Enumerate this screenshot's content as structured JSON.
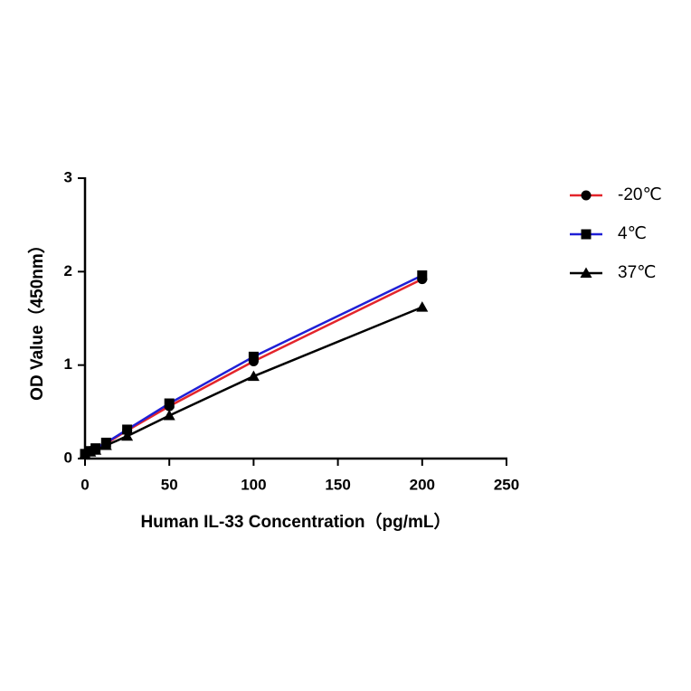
{
  "chart_data": {
    "type": "line",
    "x_label": "Human IL-33 Concentration（pg/mL）",
    "y_label": "OD Value（450nm）",
    "x": [
      0,
      3.125,
      6.25,
      12.5,
      25,
      50,
      100,
      200
    ],
    "series": [
      {
        "name": "-20℃",
        "color": "#e3242b",
        "marker": "circle",
        "values": [
          0.05,
          0.08,
          0.1,
          0.16,
          0.3,
          0.56,
          1.04,
          1.92
        ]
      },
      {
        "name": "4℃",
        "color": "#1f1fd6",
        "marker": "square",
        "values": [
          0.05,
          0.08,
          0.11,
          0.17,
          0.31,
          0.59,
          1.09,
          1.96
        ]
      },
      {
        "name": "37℃",
        "color": "#000000",
        "marker": "triangle",
        "values": [
          0.05,
          0.07,
          0.09,
          0.14,
          0.24,
          0.46,
          0.88,
          1.62
        ]
      }
    ],
    "marker_color": "#000000",
    "xlim": [
      0,
      250
    ],
    "xticks": [
      0,
      50,
      100,
      150,
      200,
      250
    ],
    "ylim": [
      0,
      3
    ],
    "yticks": [
      0,
      1,
      2,
      3
    ],
    "grid": false,
    "legend": "right"
  }
}
